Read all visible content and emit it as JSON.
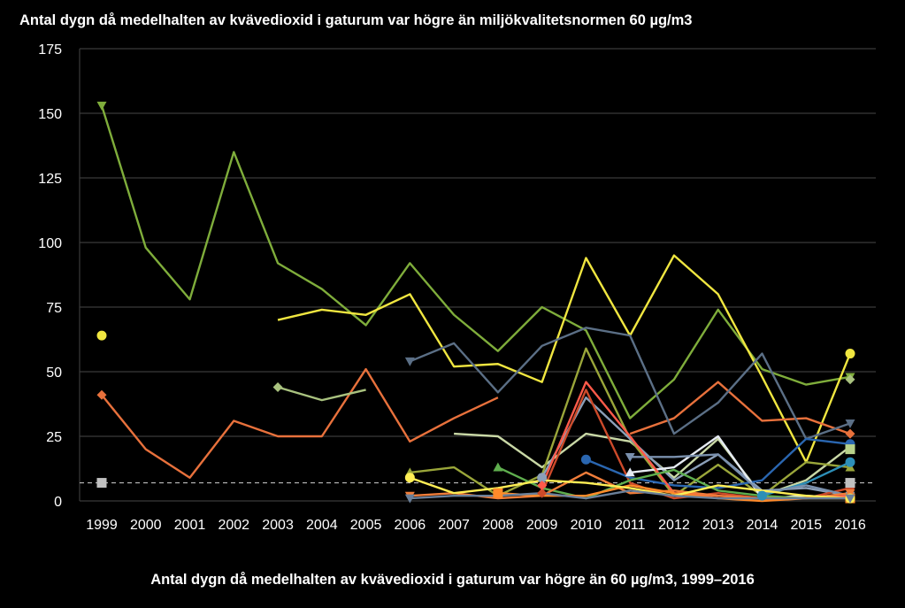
{
  "chart_data": {
    "type": "line",
    "title": "Antal dygn då medelhalten av kvävedioxid i gaturum var högre än miljökvalitetsnormen 60 µg/m3",
    "caption": "Antal dygn då medelhalten av kvävedioxid i gaturum var högre än 60 µg/m3, 1999–2016",
    "xlabel": "",
    "ylabel": "",
    "ylim": [
      0,
      175
    ],
    "yticks": [
      0,
      25,
      50,
      75,
      100,
      125,
      150,
      175
    ],
    "grid": true,
    "legend": "none",
    "categories": [
      "1999",
      "2000",
      "2001",
      "2002",
      "2003",
      "2004",
      "2005",
      "2006",
      "2007",
      "2008",
      "2009",
      "2010",
      "2011",
      "2012",
      "2013",
      "2014",
      "2015",
      "2016"
    ],
    "norm_line": {
      "value": 7,
      "color": "#bbbbbb"
    },
    "series": [
      {
        "color": "#7fad3b",
        "marker": "triangle-down",
        "values": [
          153,
          98,
          78,
          135,
          92,
          82,
          68,
          92,
          72,
          58,
          75,
          66,
          32,
          47,
          74,
          51,
          45,
          48
        ]
      },
      {
        "color": "#f0e640",
        "marker": "circle",
        "values": [
          64,
          null,
          null,
          null,
          70,
          74,
          72,
          80,
          52,
          53,
          46,
          94,
          64,
          95,
          80,
          48,
          15,
          57
        ]
      },
      {
        "color": "#e8713c",
        "marker": "diamond",
        "values": [
          41,
          20,
          9,
          31,
          25,
          25,
          51,
          23,
          32,
          40,
          null,
          null,
          26,
          32,
          46,
          31,
          32,
          26
        ]
      },
      {
        "color": "#a9c27f",
        "marker": "diamond",
        "values": [
          null,
          null,
          null,
          null,
          44,
          39,
          43,
          null,
          null,
          null,
          null,
          null,
          null,
          null,
          null,
          null,
          null,
          47
        ]
      },
      {
        "color": "#5b6f86",
        "marker": "triangle-down",
        "values": [
          null,
          null,
          null,
          null,
          null,
          null,
          null,
          54,
          61,
          42,
          60,
          67,
          64,
          26,
          38,
          57,
          24,
          30
        ]
      },
      {
        "color": "#c9d8a6",
        "marker": null,
        "values": [
          null,
          null,
          null,
          null,
          null,
          null,
          null,
          null,
          26,
          25,
          13,
          26,
          23,
          9,
          24,
          2,
          8,
          21
        ]
      },
      {
        "color": "#9aa63a",
        "marker": "triangle-up",
        "values": [
          null,
          null,
          null,
          null,
          null,
          null,
          null,
          11,
          13,
          2,
          10,
          59,
          24,
          2,
          14,
          2,
          15,
          13
        ]
      },
      {
        "color": "#8b9fb8",
        "marker": "circle",
        "values": [
          null,
          null,
          null,
          null,
          null,
          null,
          null,
          null,
          null,
          null,
          9,
          40,
          24,
          8,
          18,
          4,
          5,
          2
        ]
      },
      {
        "color": "#cc4a2a",
        "marker": "diamond",
        "values": [
          null,
          null,
          null,
          null,
          null,
          null,
          null,
          null,
          null,
          null,
          3,
          43,
          7,
          1,
          3,
          1,
          1,
          5
        ]
      },
      {
        "color": "#2a66b0",
        "marker": "circle",
        "values": [
          null,
          null,
          null,
          null,
          null,
          null,
          null,
          null,
          null,
          null,
          null,
          16,
          9,
          6,
          5,
          8,
          24,
          22
        ]
      },
      {
        "color": "#2d8fb8",
        "marker": "circle",
        "values": [
          null,
          null,
          null,
          null,
          null,
          null,
          null,
          null,
          null,
          null,
          null,
          null,
          null,
          null,
          null,
          2,
          7,
          15
        ]
      },
      {
        "color": "#e6ebf2",
        "marker": "triangle-up",
        "values": [
          null,
          null,
          null,
          null,
          null,
          null,
          null,
          null,
          null,
          null,
          null,
          null,
          11,
          13,
          25,
          1,
          2,
          1
        ]
      },
      {
        "color": "#7a90ad",
        "marker": "triangle-down",
        "values": [
          null,
          null,
          null,
          null,
          null,
          null,
          null,
          null,
          null,
          null,
          null,
          null,
          17,
          17,
          18,
          3,
          6,
          2
        ]
      },
      {
        "color": "#ff5a4a",
        "marker": "diamond",
        "values": [
          null,
          null,
          null,
          null,
          null,
          null,
          null,
          null,
          null,
          null,
          6,
          46,
          25,
          3,
          2,
          1,
          1,
          2
        ]
      },
      {
        "color": "#5fae4e",
        "marker": "triangle-up",
        "values": [
          null,
          null,
          null,
          null,
          null,
          null,
          null,
          null,
          null,
          13,
          5,
          1,
          8,
          12,
          4,
          2,
          1,
          1
        ]
      },
      {
        "color": "#f07d3a",
        "marker": "triangle-down",
        "values": [
          null,
          null,
          null,
          null,
          null,
          null,
          null,
          2,
          3,
          1,
          2,
          11,
          3,
          4,
          2,
          1,
          1,
          3
        ]
      },
      {
        "color": "#ff8a2a",
        "marker": "square",
        "values": [
          null,
          null,
          null,
          null,
          null,
          null,
          null,
          null,
          null,
          3,
          2,
          2,
          6,
          3,
          1,
          0,
          1,
          1
        ]
      },
      {
        "color": "#ffee55",
        "marker": "circle",
        "values": [
          null,
          null,
          null,
          null,
          null,
          null,
          null,
          9,
          3,
          5,
          8,
          7,
          5,
          2,
          6,
          4,
          2,
          1
        ]
      },
      {
        "color": "#6a7f99",
        "marker": "triangle-down",
        "values": [
          null,
          null,
          null,
          null,
          null,
          null,
          null,
          1,
          2,
          2,
          3,
          1,
          4,
          2,
          1,
          1,
          1,
          1
        ]
      },
      {
        "color": "#b8d28a",
        "marker": "square",
        "values": [
          null,
          null,
          null,
          null,
          null,
          null,
          null,
          null,
          null,
          null,
          null,
          null,
          null,
          null,
          null,
          null,
          null,
          20
        ]
      },
      {
        "color": "#c0c0c0",
        "marker": "square",
        "values": [
          7,
          null,
          null,
          null,
          null,
          null,
          null,
          null,
          null,
          null,
          null,
          null,
          null,
          null,
          null,
          null,
          null,
          7
        ]
      }
    ]
  }
}
